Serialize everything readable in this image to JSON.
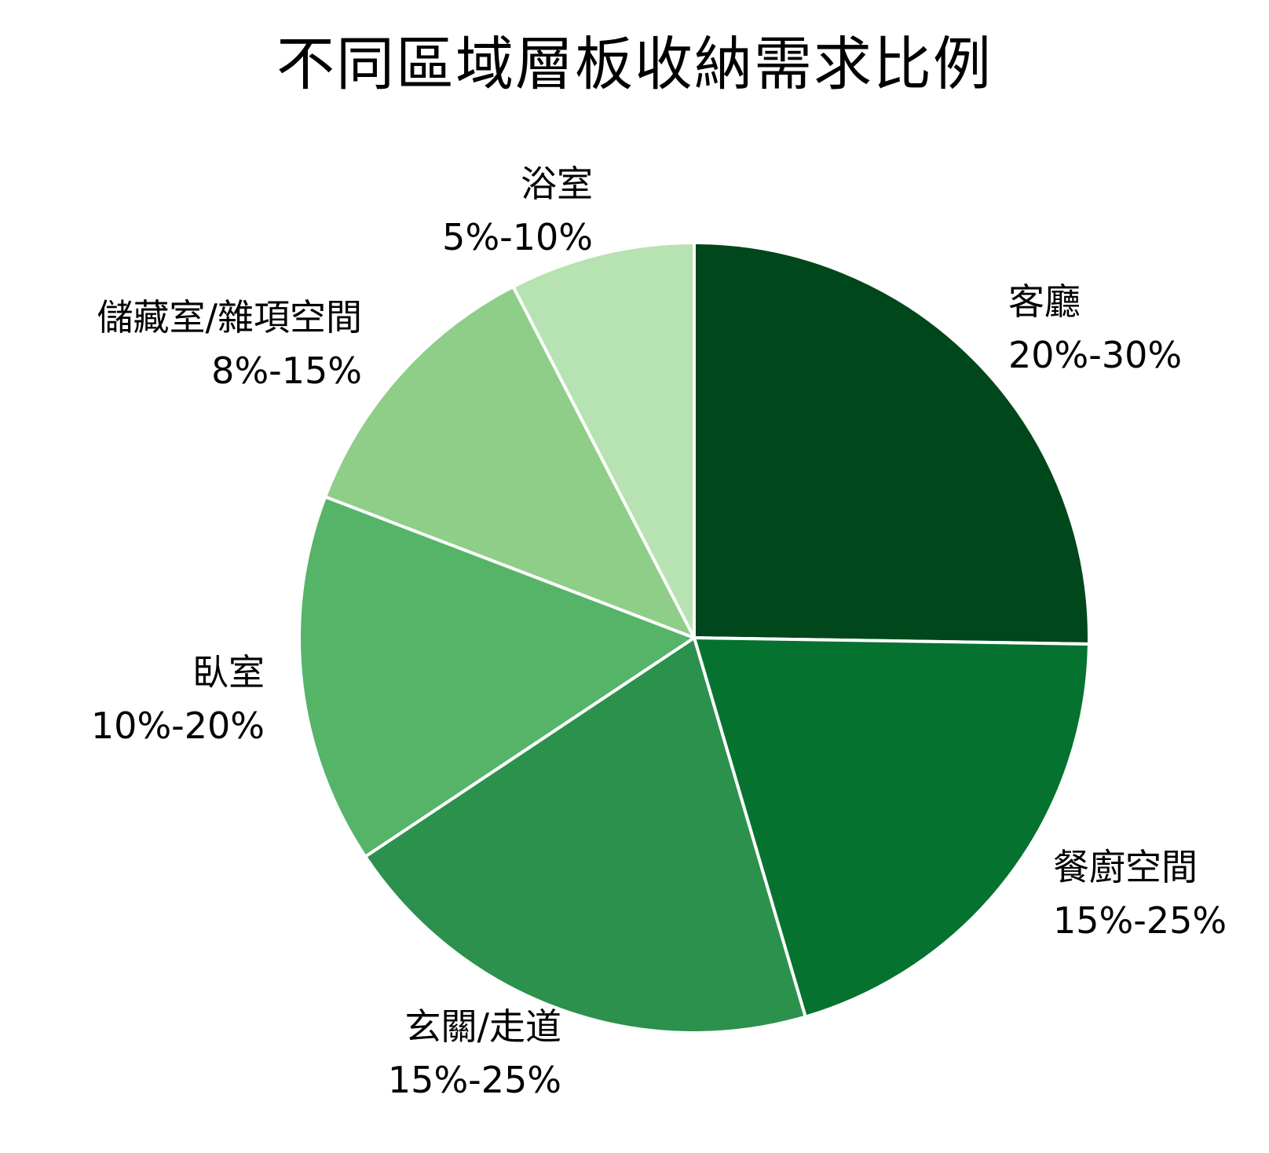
{
  "chart_data": {
    "type": "pie",
    "title": "不同區域層板收納需求比例",
    "start": "12 o'clock",
    "direction": "clockwise",
    "slices": [
      {
        "label": "客廳",
        "range": "20%-30%",
        "value": 25,
        "color": "#00471b"
      },
      {
        "label": "餐廚空間",
        "range": "15%-25%",
        "value": 20,
        "color": "#067230"
      },
      {
        "label": "玄關/走道",
        "range": "15%-25%",
        "value": 20,
        "color": "#2b914d"
      },
      {
        "label": "臥室",
        "range": "10%-20%",
        "value": 15,
        "color": "#56b469"
      },
      {
        "label": "儲藏室/雜項空間",
        "range": "8%-15%",
        "value": 11.5,
        "color": "#8ece88"
      },
      {
        "label": "浴室",
        "range": "5%-10%",
        "value": 7.5,
        "color": "#b7e2b1"
      }
    ],
    "slice_border_color": "#ffffff"
  }
}
